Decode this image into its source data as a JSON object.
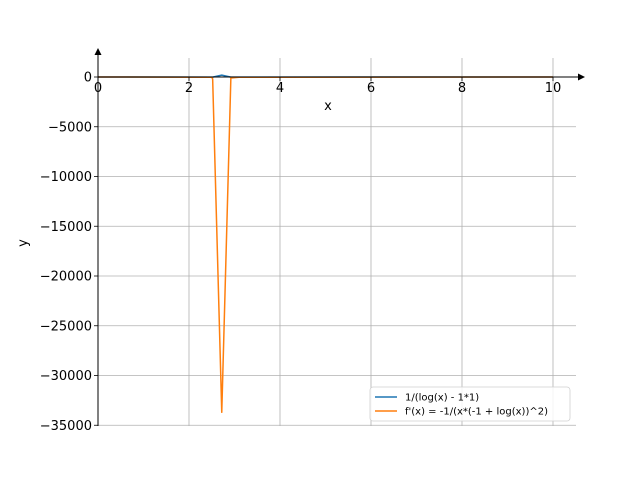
{
  "chart_data": {
    "type": "line",
    "xlabel": "x",
    "ylabel": "y",
    "xlim": [
      0,
      10.5
    ],
    "ylim": [
      -35000,
      2500
    ],
    "grid": true,
    "legend_position": "bottom-right",
    "x_ticks": [
      0,
      2,
      4,
      6,
      8,
      10
    ],
    "y_ticks": [
      0,
      -5000,
      -10000,
      -15000,
      -20000,
      -25000,
      -30000,
      -35000
    ],
    "x_tick_labels": [
      "0",
      "2",
      "4",
      "6",
      "8",
      "10"
    ],
    "y_tick_labels": [
      "0",
      "−5000",
      "−10000",
      "−15000",
      "−20000",
      "−25000",
      "−30000",
      "−35000"
    ],
    "series": [
      {
        "name": "1/(log(x) - 1*1)",
        "color": "#1f77b4",
        "x": [
          0.0,
          2.5,
          2.52,
          2.72,
          2.92,
          3.1,
          10.0
        ],
        "y": [
          0,
          -8,
          -9,
          185,
          -10,
          -8,
          0
        ]
      },
      {
        "name": "f'(x) = -1/(x*(-1 + log(x))^2)",
        "color": "#ff7f0e",
        "x": [
          0.0,
          2.5,
          2.52,
          2.72,
          2.92,
          3.1,
          10.0
        ],
        "y": [
          0,
          -20,
          -200,
          -33700,
          -100,
          -25,
          0
        ]
      }
    ]
  }
}
